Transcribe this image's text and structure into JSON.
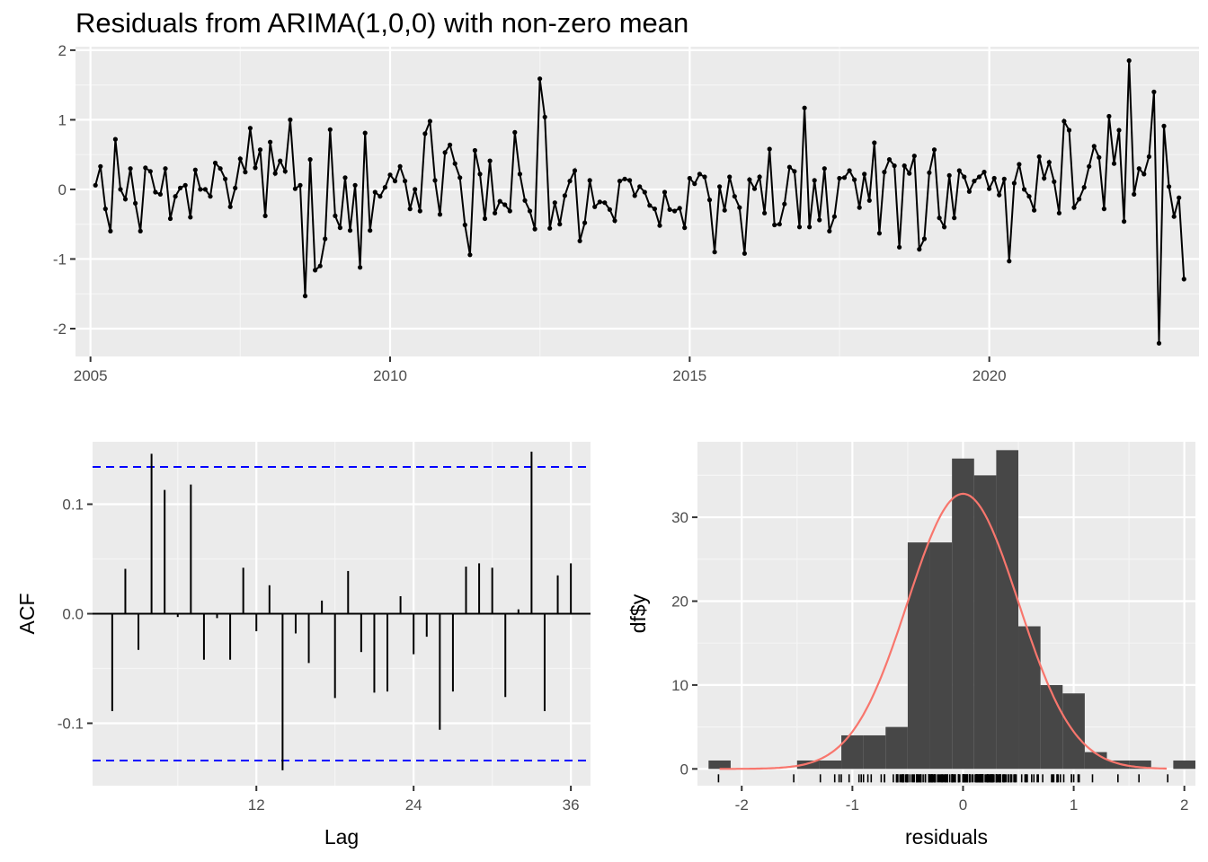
{
  "chart_data": [
    {
      "type": "line",
      "title": "Residuals from ARIMA(1,0,0) with non-zero mean",
      "xlabel": "",
      "ylabel": "",
      "xlim": [
        2004.75,
        2023.5
      ],
      "ylim": [
        -2.4,
        2.05
      ],
      "x_ticks": [
        "2005",
        "2010",
        "2015",
        "2020"
      ],
      "y_ticks": [
        "-2",
        "-1",
        "0",
        "1",
        "2"
      ],
      "grid": true,
      "x_start": 2005.083,
      "x_step": 0.08333,
      "values": [
        0.06,
        0.33,
        -0.28,
        -0.6,
        0.72,
        0.0,
        -0.14,
        0.3,
        -0.2,
        -0.6,
        0.31,
        0.26,
        -0.04,
        -0.07,
        0.3,
        -0.42,
        -0.1,
        0.02,
        0.06,
        -0.4,
        0.28,
        0.0,
        0.0,
        -0.1,
        0.38,
        0.3,
        0.15,
        -0.25,
        0.02,
        0.44,
        0.25,
        0.88,
        0.31,
        0.57,
        -0.38,
        0.68,
        0.23,
        0.41,
        0.26,
        1.0,
        0.01,
        0.06,
        -1.53,
        0.43,
        -1.16,
        -1.1,
        -0.71,
        0.86,
        -0.38,
        -0.55,
        0.17,
        -0.59,
        0.06,
        -1.12,
        0.81,
        -0.59,
        -0.04,
        -0.1,
        0.03,
        0.21,
        0.12,
        0.33,
        0.12,
        -0.28,
        0.0,
        -0.31,
        0.8,
        0.98,
        0.13,
        -0.36,
        0.53,
        0.64,
        0.37,
        0.17,
        -0.51,
        -0.94,
        0.56,
        0.22,
        -0.42,
        0.41,
        -0.34,
        -0.17,
        -0.22,
        -0.31,
        0.82,
        0.22,
        -0.16,
        -0.31,
        -0.57,
        1.59,
        1.04,
        -0.56,
        -0.19,
        -0.5,
        -0.09,
        0.12,
        0.27,
        -0.74,
        -0.48,
        0.13,
        -0.25,
        -0.18,
        -0.19,
        -0.29,
        -0.45,
        0.12,
        0.15,
        0.13,
        -0.09,
        0.04,
        -0.04,
        -0.23,
        -0.28,
        -0.52,
        -0.04,
        -0.29,
        -0.31,
        -0.27,
        -0.55,
        0.16,
        0.08,
        0.22,
        0.18,
        -0.15,
        -0.9,
        0.04,
        -0.3,
        0.18,
        -0.1,
        -0.26,
        -0.92,
        0.14,
        0.01,
        0.18,
        -0.34,
        0.58,
        -0.51,
        -0.5,
        -0.21,
        0.32,
        0.26,
        -0.54,
        1.17,
        -0.54,
        0.13,
        -0.44,
        0.3,
        -0.6,
        -0.39,
        0.16,
        0.17,
        0.27,
        0.14,
        -0.26,
        0.22,
        -0.16,
        0.67,
        -0.63,
        0.25,
        0.43,
        0.34,
        -0.83,
        0.34,
        0.23,
        0.48,
        -0.86,
        -0.71,
        0.24,
        0.57,
        -0.41,
        -0.54,
        0.2,
        -0.41,
        0.27,
        0.18,
        -0.03,
        0.12,
        0.18,
        0.25,
        0.01,
        0.16,
        -0.08,
        0.15,
        -1.03,
        0.09,
        0.36,
        0.0,
        -0.1,
        -0.3,
        0.47,
        0.16,
        0.39,
        0.11,
        -0.34,
        0.98,
        0.85,
        -0.26,
        -0.14,
        0.03,
        0.33,
        0.62,
        0.46,
        -0.28,
        1.05,
        0.37,
        0.85,
        -0.46,
        1.85,
        -0.07,
        0.3,
        0.22,
        0.47,
        1.4,
        -2.21,
        0.91,
        0.04,
        -0.39,
        -0.12,
        -1.29
      ]
    },
    {
      "type": "bar",
      "title": "",
      "xlabel": "Lag",
      "ylabel": "ACF",
      "lags": [
        1,
        2,
        3,
        4,
        5,
        6,
        7,
        8,
        9,
        10,
        11,
        12,
        13,
        14,
        15,
        16,
        17,
        18,
        19,
        20,
        21,
        22,
        23,
        24,
        25,
        26,
        27,
        28,
        29,
        30,
        31,
        32,
        33,
        34,
        35,
        36
      ],
      "values": [
        -0.089,
        0.041,
        -0.033,
        0.146,
        0.113,
        -0.003,
        0.118,
        -0.042,
        -0.004,
        -0.042,
        0.042,
        -0.016,
        0.026,
        -0.143,
        -0.018,
        -0.045,
        0.012,
        -0.077,
        0.039,
        -0.035,
        -0.072,
        -0.071,
        0.016,
        -0.037,
        -0.021,
        -0.106,
        -0.071,
        0.043,
        0.046,
        0.042,
        -0.076,
        0.004,
        0.148,
        -0.089,
        0.035,
        0.046
      ],
      "ci": 0.134,
      "xlim": [
        -0.5,
        37.5
      ],
      "ylim": [
        -0.157,
        0.157
      ],
      "x_ticks": [
        "12",
        "24",
        "36"
      ],
      "y_ticks": [
        "-0.1",
        "0.0",
        "0.1"
      ],
      "grid": true,
      "ci_color": "#0000ff"
    },
    {
      "type": "histogram",
      "title": "",
      "xlabel": "residuals",
      "ylabel": "df$y",
      "bin_width": 0.2,
      "bin_starts": [
        -2.3,
        -2.1,
        -1.9,
        -1.7,
        -1.5,
        -1.3,
        -1.1,
        -0.9,
        -0.7,
        -0.5,
        -0.3,
        -0.1,
        0.1,
        0.3,
        0.5,
        0.7,
        0.9,
        1.1,
        1.3,
        1.5,
        1.7,
        1.9
      ],
      "counts": [
        1,
        0,
        0,
        0,
        1,
        1,
        4,
        4,
        5,
        27,
        27,
        37,
        35,
        38,
        17,
        10,
        9,
        2,
        1,
        1,
        0,
        1
      ],
      "curve": {
        "mean": 0.0,
        "sd": 0.5,
        "peak": 32.8,
        "color": "#f8766d"
      },
      "xlim": [
        -2.4,
        2.1
      ],
      "ylim": [
        -2,
        39
      ],
      "x_ticks": [
        "-2",
        "-1",
        "0",
        "1",
        "2"
      ],
      "y_ticks": [
        "0",
        "10",
        "20",
        "30"
      ],
      "grid": true,
      "bar_color": "#474747"
    }
  ]
}
